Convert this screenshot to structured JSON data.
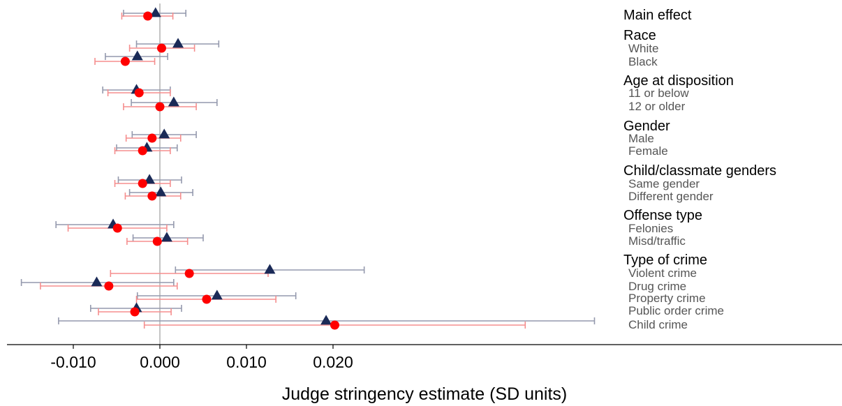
{
  "chart_data": {
    "type": "scatter",
    "xlabel": "Judge stringency estimate (SD units)",
    "x_ticks": [
      "-0.010",
      "0.000",
      "0.010",
      "0.020"
    ],
    "x_tick_values": [
      -0.01,
      0.0,
      0.01,
      0.02
    ],
    "xlim": [
      -0.0168,
      0.0255
    ],
    "reference_line_x": 0.0,
    "colors": {
      "series_a": "#1a2a57",
      "series_a_ci": "#9499ad",
      "series_b": "#ff0000",
      "series_b_ci": "#f58e8e"
    },
    "categories": [
      {
        "label": "Main effect",
        "kind": "group"
      },
      {
        "label": "Race",
        "kind": "group"
      },
      {
        "label": "White",
        "kind": "sub"
      },
      {
        "label": "Black",
        "kind": "sub"
      },
      {
        "label": "Age at disposition",
        "kind": "group"
      },
      {
        "label": "11 or below",
        "kind": "sub"
      },
      {
        "label": "12 or older",
        "kind": "sub"
      },
      {
        "label": "Gender",
        "kind": "group"
      },
      {
        "label": "Male",
        "kind": "sub"
      },
      {
        "label": "Female",
        "kind": "sub"
      },
      {
        "label": "Child/classmate genders",
        "kind": "group"
      },
      {
        "label": "Same gender",
        "kind": "sub"
      },
      {
        "label": "Different gender",
        "kind": "sub"
      },
      {
        "label": "Offense type",
        "kind": "group"
      },
      {
        "label": "Felonies",
        "kind": "sub"
      },
      {
        "label": "Misd/traffic",
        "kind": "sub"
      },
      {
        "label": "Type of crime",
        "kind": "group"
      },
      {
        "label": "Violent crime",
        "kind": "sub"
      },
      {
        "label": "Drug crime",
        "kind": "sub"
      },
      {
        "label": "Property crime",
        "kind": "sub"
      },
      {
        "label": "Public order crime",
        "kind": "sub"
      },
      {
        "label": "Child crime",
        "kind": "sub"
      }
    ],
    "series": [
      {
        "marker": "triangle",
        "points": [
          {
            "category": "Main effect",
            "est": -0.0005,
            "lo": -0.0042,
            "hi": 0.003
          },
          {
            "category": "White",
            "est": 0.0021,
            "lo": -0.0027,
            "hi": 0.0068
          },
          {
            "category": "Black",
            "est": -0.0026,
            "lo": -0.0063,
            "hi": 0.0009
          },
          {
            "category": "11 or below",
            "est": -0.0027,
            "lo": -0.0066,
            "hi": 0.0012
          },
          {
            "category": "12 or older",
            "est": 0.0016,
            "lo": -0.0033,
            "hi": 0.0066
          },
          {
            "category": "Male",
            "est": 0.0005,
            "lo": -0.0032,
            "hi": 0.0042
          },
          {
            "category": "Female",
            "est": -0.0015,
            "lo": -0.005,
            "hi": 0.002
          },
          {
            "category": "Same gender",
            "est": -0.0012,
            "lo": -0.0048,
            "hi": 0.0025
          },
          {
            "category": "Different gender",
            "est": 0.0001,
            "lo": -0.0035,
            "hi": 0.0038
          },
          {
            "category": "Felonies",
            "est": -0.0054,
            "lo": -0.012,
            "hi": 0.0016
          },
          {
            "category": "Misd/traffic",
            "est": 0.0008,
            "lo": -0.0031,
            "hi": 0.005
          },
          {
            "category": "Violent crime",
            "est": 0.0127,
            "lo": 0.0018,
            "hi": 0.0236
          },
          {
            "category": "Drug crime",
            "est": -0.0073,
            "lo": -0.016,
            "hi": 0.0016
          },
          {
            "category": "Property crime",
            "est": 0.0066,
            "lo": -0.0026,
            "hi": 0.0157
          },
          {
            "category": "Public order crime",
            "est": -0.0027,
            "lo": -0.008,
            "hi": 0.0025
          },
          {
            "category": "Child crime",
            "est": 0.0192,
            "lo": -0.0117,
            "hi": 0.0502
          }
        ]
      },
      {
        "marker": "circle",
        "points": [
          {
            "category": "Main effect",
            "est": -0.0014,
            "lo": -0.0044,
            "hi": 0.0015
          },
          {
            "category": "White",
            "est": 0.0002,
            "lo": -0.0035,
            "hi": 0.004
          },
          {
            "category": "Black",
            "est": -0.004,
            "lo": -0.0075,
            "hi": -0.0006
          },
          {
            "category": "11 or below",
            "est": -0.0024,
            "lo": -0.006,
            "hi": 0.0012
          },
          {
            "category": "12 or older",
            "est": 0.0,
            "lo": -0.0042,
            "hi": 0.0042
          },
          {
            "category": "Male",
            "est": -0.0009,
            "lo": -0.0039,
            "hi": 0.0024
          },
          {
            "category": "Female",
            "est": -0.002,
            "lo": -0.0052,
            "hi": 0.0012
          },
          {
            "category": "Same gender",
            "est": -0.002,
            "lo": -0.0052,
            "hi": 0.0012
          },
          {
            "category": "Different gender",
            "est": -0.0009,
            "lo": -0.004,
            "hi": 0.0024
          },
          {
            "category": "Felonies",
            "est": -0.0049,
            "lo": -0.0106,
            "hi": 0.0008
          },
          {
            "category": "Misd/traffic",
            "est": -0.0003,
            "lo": -0.0038,
            "hi": 0.0032
          },
          {
            "category": "Violent crime",
            "est": 0.0034,
            "lo": -0.0057,
            "hi": 0.0125
          },
          {
            "category": "Drug crime",
            "est": -0.0059,
            "lo": -0.0138,
            "hi": 0.002
          },
          {
            "category": "Property crime",
            "est": 0.0054,
            "lo": -0.0027,
            "hi": 0.0134
          },
          {
            "category": "Public order crime",
            "est": -0.0029,
            "lo": -0.0071,
            "hi": 0.0013
          },
          {
            "category": "Child crime",
            "est": 0.0202,
            "lo": -0.0018,
            "hi": 0.0422
          }
        ]
      }
    ]
  }
}
